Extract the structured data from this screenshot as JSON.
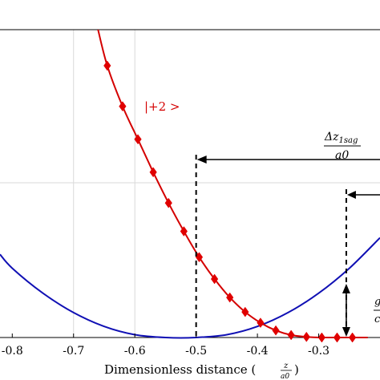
{
  "chart_data": {
    "type": "line",
    "xlabel": "Dimensionless distance (",
    "xlabel_fraction": {
      "numerator": "z",
      "denominator": "a0"
    },
    "xlabel_close": ")",
    "xlim": [
      -0.82,
      -0.2
    ],
    "ylim": [
      0,
      1
    ],
    "xticks": [
      -0.8,
      -0.7,
      -0.6,
      -0.5,
      -0.4,
      -0.3
    ],
    "xtick_labels": [
      "-0.8",
      "-0.7",
      "-0.6",
      "-0.5",
      "-0.4",
      "-0.3"
    ],
    "grid": true,
    "colors": {
      "blue": "#1010b4",
      "red": "#d40000",
      "marker": "#e00000"
    },
    "series": [
      {
        "x": [
          -0.82,
          -0.8,
          -0.75,
          -0.7,
          -0.65,
          -0.6,
          -0.55,
          -0.5,
          -0.45,
          -0.4,
          -0.35,
          -0.3,
          -0.25,
          -0.2
        ],
        "y": [
          0.27,
          0.225,
          0.144,
          0.081,
          0.036,
          0.009,
          0.0,
          0.0,
          0.009,
          0.036,
          0.081,
          0.144,
          0.225,
          0.324
        ]
      },
      {
        "name": "|+2 >",
        "markers": "diamond",
        "x": [
          -0.66,
          -0.645,
          -0.62,
          -0.595,
          -0.57,
          -0.545,
          -0.52,
          -0.495,
          -0.47,
          -0.445,
          -0.42,
          -0.395,
          -0.37,
          -0.345,
          -0.32,
          -0.295,
          -0.27,
          -0.245,
          -0.22
        ],
        "y": [
          1.0,
          0.883,
          0.751,
          0.644,
          0.537,
          0.437,
          0.345,
          0.261,
          0.19,
          0.13,
          0.083,
          0.048,
          0.023,
          0.008,
          0.002,
          0.0,
          0.0,
          0.0,
          0.0
        ],
        "marker_x": [
          -0.645,
          -0.62,
          -0.595,
          -0.57,
          -0.545,
          -0.52,
          -0.495,
          -0.47,
          -0.445,
          -0.42,
          -0.395,
          -0.37,
          -0.345,
          -0.32,
          -0.295,
          -0.27,
          -0.245
        ]
      }
    ],
    "annotations": {
      "state_label": "|+2 >",
      "delta_numerator": "Δz",
      "delta_subscript": "1sag",
      "delta_denominator": "a0",
      "partial_right_glyph_top": "g",
      "partial_right_glyph_bottom": "c",
      "marker_vertical_x": -0.5,
      "marker_vertical_x2": -0.255
    }
  }
}
